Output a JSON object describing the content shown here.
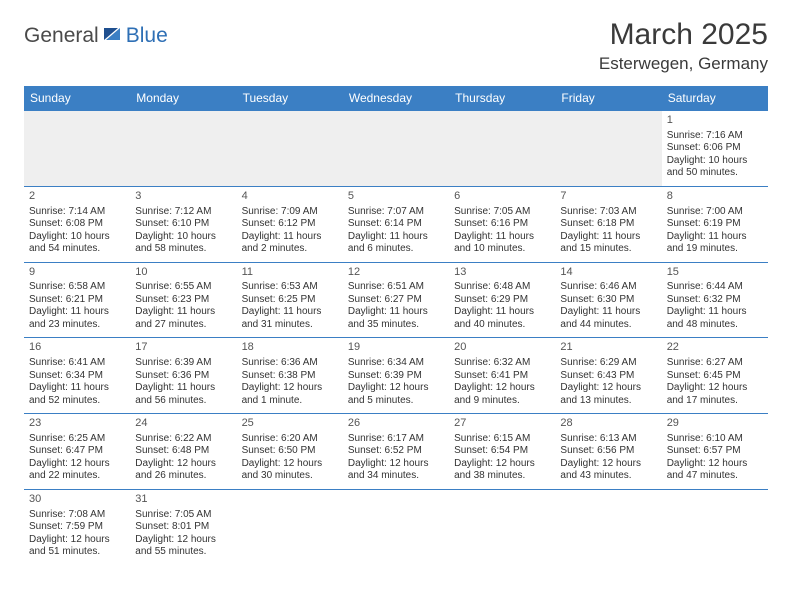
{
  "logo": {
    "part1": "General",
    "part2": "Blue"
  },
  "title": "March 2025",
  "location": "Esterwegen, Germany",
  "colors": {
    "header_bg": "#3b7fc4",
    "header_text": "#ffffff",
    "border": "#3b7fc4",
    "logo_grey": "#4a4a4a",
    "logo_blue": "#2e6fb5"
  },
  "day_headers": [
    "Sunday",
    "Monday",
    "Tuesday",
    "Wednesday",
    "Thursday",
    "Friday",
    "Saturday"
  ],
  "weeks": [
    [
      null,
      null,
      null,
      null,
      null,
      null,
      {
        "n": "1",
        "sr": "Sunrise: 7:16 AM",
        "ss": "Sunset: 6:06 PM",
        "dl1": "Daylight: 10 hours",
        "dl2": "and 50 minutes."
      }
    ],
    [
      {
        "n": "2",
        "sr": "Sunrise: 7:14 AM",
        "ss": "Sunset: 6:08 PM",
        "dl1": "Daylight: 10 hours",
        "dl2": "and 54 minutes."
      },
      {
        "n": "3",
        "sr": "Sunrise: 7:12 AM",
        "ss": "Sunset: 6:10 PM",
        "dl1": "Daylight: 10 hours",
        "dl2": "and 58 minutes."
      },
      {
        "n": "4",
        "sr": "Sunrise: 7:09 AM",
        "ss": "Sunset: 6:12 PM",
        "dl1": "Daylight: 11 hours",
        "dl2": "and 2 minutes."
      },
      {
        "n": "5",
        "sr": "Sunrise: 7:07 AM",
        "ss": "Sunset: 6:14 PM",
        "dl1": "Daylight: 11 hours",
        "dl2": "and 6 minutes."
      },
      {
        "n": "6",
        "sr": "Sunrise: 7:05 AM",
        "ss": "Sunset: 6:16 PM",
        "dl1": "Daylight: 11 hours",
        "dl2": "and 10 minutes."
      },
      {
        "n": "7",
        "sr": "Sunrise: 7:03 AM",
        "ss": "Sunset: 6:18 PM",
        "dl1": "Daylight: 11 hours",
        "dl2": "and 15 minutes."
      },
      {
        "n": "8",
        "sr": "Sunrise: 7:00 AM",
        "ss": "Sunset: 6:19 PM",
        "dl1": "Daylight: 11 hours",
        "dl2": "and 19 minutes."
      }
    ],
    [
      {
        "n": "9",
        "sr": "Sunrise: 6:58 AM",
        "ss": "Sunset: 6:21 PM",
        "dl1": "Daylight: 11 hours",
        "dl2": "and 23 minutes."
      },
      {
        "n": "10",
        "sr": "Sunrise: 6:55 AM",
        "ss": "Sunset: 6:23 PM",
        "dl1": "Daylight: 11 hours",
        "dl2": "and 27 minutes."
      },
      {
        "n": "11",
        "sr": "Sunrise: 6:53 AM",
        "ss": "Sunset: 6:25 PM",
        "dl1": "Daylight: 11 hours",
        "dl2": "and 31 minutes."
      },
      {
        "n": "12",
        "sr": "Sunrise: 6:51 AM",
        "ss": "Sunset: 6:27 PM",
        "dl1": "Daylight: 11 hours",
        "dl2": "and 35 minutes."
      },
      {
        "n": "13",
        "sr": "Sunrise: 6:48 AM",
        "ss": "Sunset: 6:29 PM",
        "dl1": "Daylight: 11 hours",
        "dl2": "and 40 minutes."
      },
      {
        "n": "14",
        "sr": "Sunrise: 6:46 AM",
        "ss": "Sunset: 6:30 PM",
        "dl1": "Daylight: 11 hours",
        "dl2": "and 44 minutes."
      },
      {
        "n": "15",
        "sr": "Sunrise: 6:44 AM",
        "ss": "Sunset: 6:32 PM",
        "dl1": "Daylight: 11 hours",
        "dl2": "and 48 minutes."
      }
    ],
    [
      {
        "n": "16",
        "sr": "Sunrise: 6:41 AM",
        "ss": "Sunset: 6:34 PM",
        "dl1": "Daylight: 11 hours",
        "dl2": "and 52 minutes."
      },
      {
        "n": "17",
        "sr": "Sunrise: 6:39 AM",
        "ss": "Sunset: 6:36 PM",
        "dl1": "Daylight: 11 hours",
        "dl2": "and 56 minutes."
      },
      {
        "n": "18",
        "sr": "Sunrise: 6:36 AM",
        "ss": "Sunset: 6:38 PM",
        "dl1": "Daylight: 12 hours",
        "dl2": "and 1 minute."
      },
      {
        "n": "19",
        "sr": "Sunrise: 6:34 AM",
        "ss": "Sunset: 6:39 PM",
        "dl1": "Daylight: 12 hours",
        "dl2": "and 5 minutes."
      },
      {
        "n": "20",
        "sr": "Sunrise: 6:32 AM",
        "ss": "Sunset: 6:41 PM",
        "dl1": "Daylight: 12 hours",
        "dl2": "and 9 minutes."
      },
      {
        "n": "21",
        "sr": "Sunrise: 6:29 AM",
        "ss": "Sunset: 6:43 PM",
        "dl1": "Daylight: 12 hours",
        "dl2": "and 13 minutes."
      },
      {
        "n": "22",
        "sr": "Sunrise: 6:27 AM",
        "ss": "Sunset: 6:45 PM",
        "dl1": "Daylight: 12 hours",
        "dl2": "and 17 minutes."
      }
    ],
    [
      {
        "n": "23",
        "sr": "Sunrise: 6:25 AM",
        "ss": "Sunset: 6:47 PM",
        "dl1": "Daylight: 12 hours",
        "dl2": "and 22 minutes."
      },
      {
        "n": "24",
        "sr": "Sunrise: 6:22 AM",
        "ss": "Sunset: 6:48 PM",
        "dl1": "Daylight: 12 hours",
        "dl2": "and 26 minutes."
      },
      {
        "n": "25",
        "sr": "Sunrise: 6:20 AM",
        "ss": "Sunset: 6:50 PM",
        "dl1": "Daylight: 12 hours",
        "dl2": "and 30 minutes."
      },
      {
        "n": "26",
        "sr": "Sunrise: 6:17 AM",
        "ss": "Sunset: 6:52 PM",
        "dl1": "Daylight: 12 hours",
        "dl2": "and 34 minutes."
      },
      {
        "n": "27",
        "sr": "Sunrise: 6:15 AM",
        "ss": "Sunset: 6:54 PM",
        "dl1": "Daylight: 12 hours",
        "dl2": "and 38 minutes."
      },
      {
        "n": "28",
        "sr": "Sunrise: 6:13 AM",
        "ss": "Sunset: 6:56 PM",
        "dl1": "Daylight: 12 hours",
        "dl2": "and 43 minutes."
      },
      {
        "n": "29",
        "sr": "Sunrise: 6:10 AM",
        "ss": "Sunset: 6:57 PM",
        "dl1": "Daylight: 12 hours",
        "dl2": "and 47 minutes."
      }
    ],
    [
      {
        "n": "30",
        "sr": "Sunrise: 7:08 AM",
        "ss": "Sunset: 7:59 PM",
        "dl1": "Daylight: 12 hours",
        "dl2": "and 51 minutes."
      },
      {
        "n": "31",
        "sr": "Sunrise: 7:05 AM",
        "ss": "Sunset: 8:01 PM",
        "dl1": "Daylight: 12 hours",
        "dl2": "and 55 minutes."
      },
      null,
      null,
      null,
      null,
      null
    ]
  ]
}
